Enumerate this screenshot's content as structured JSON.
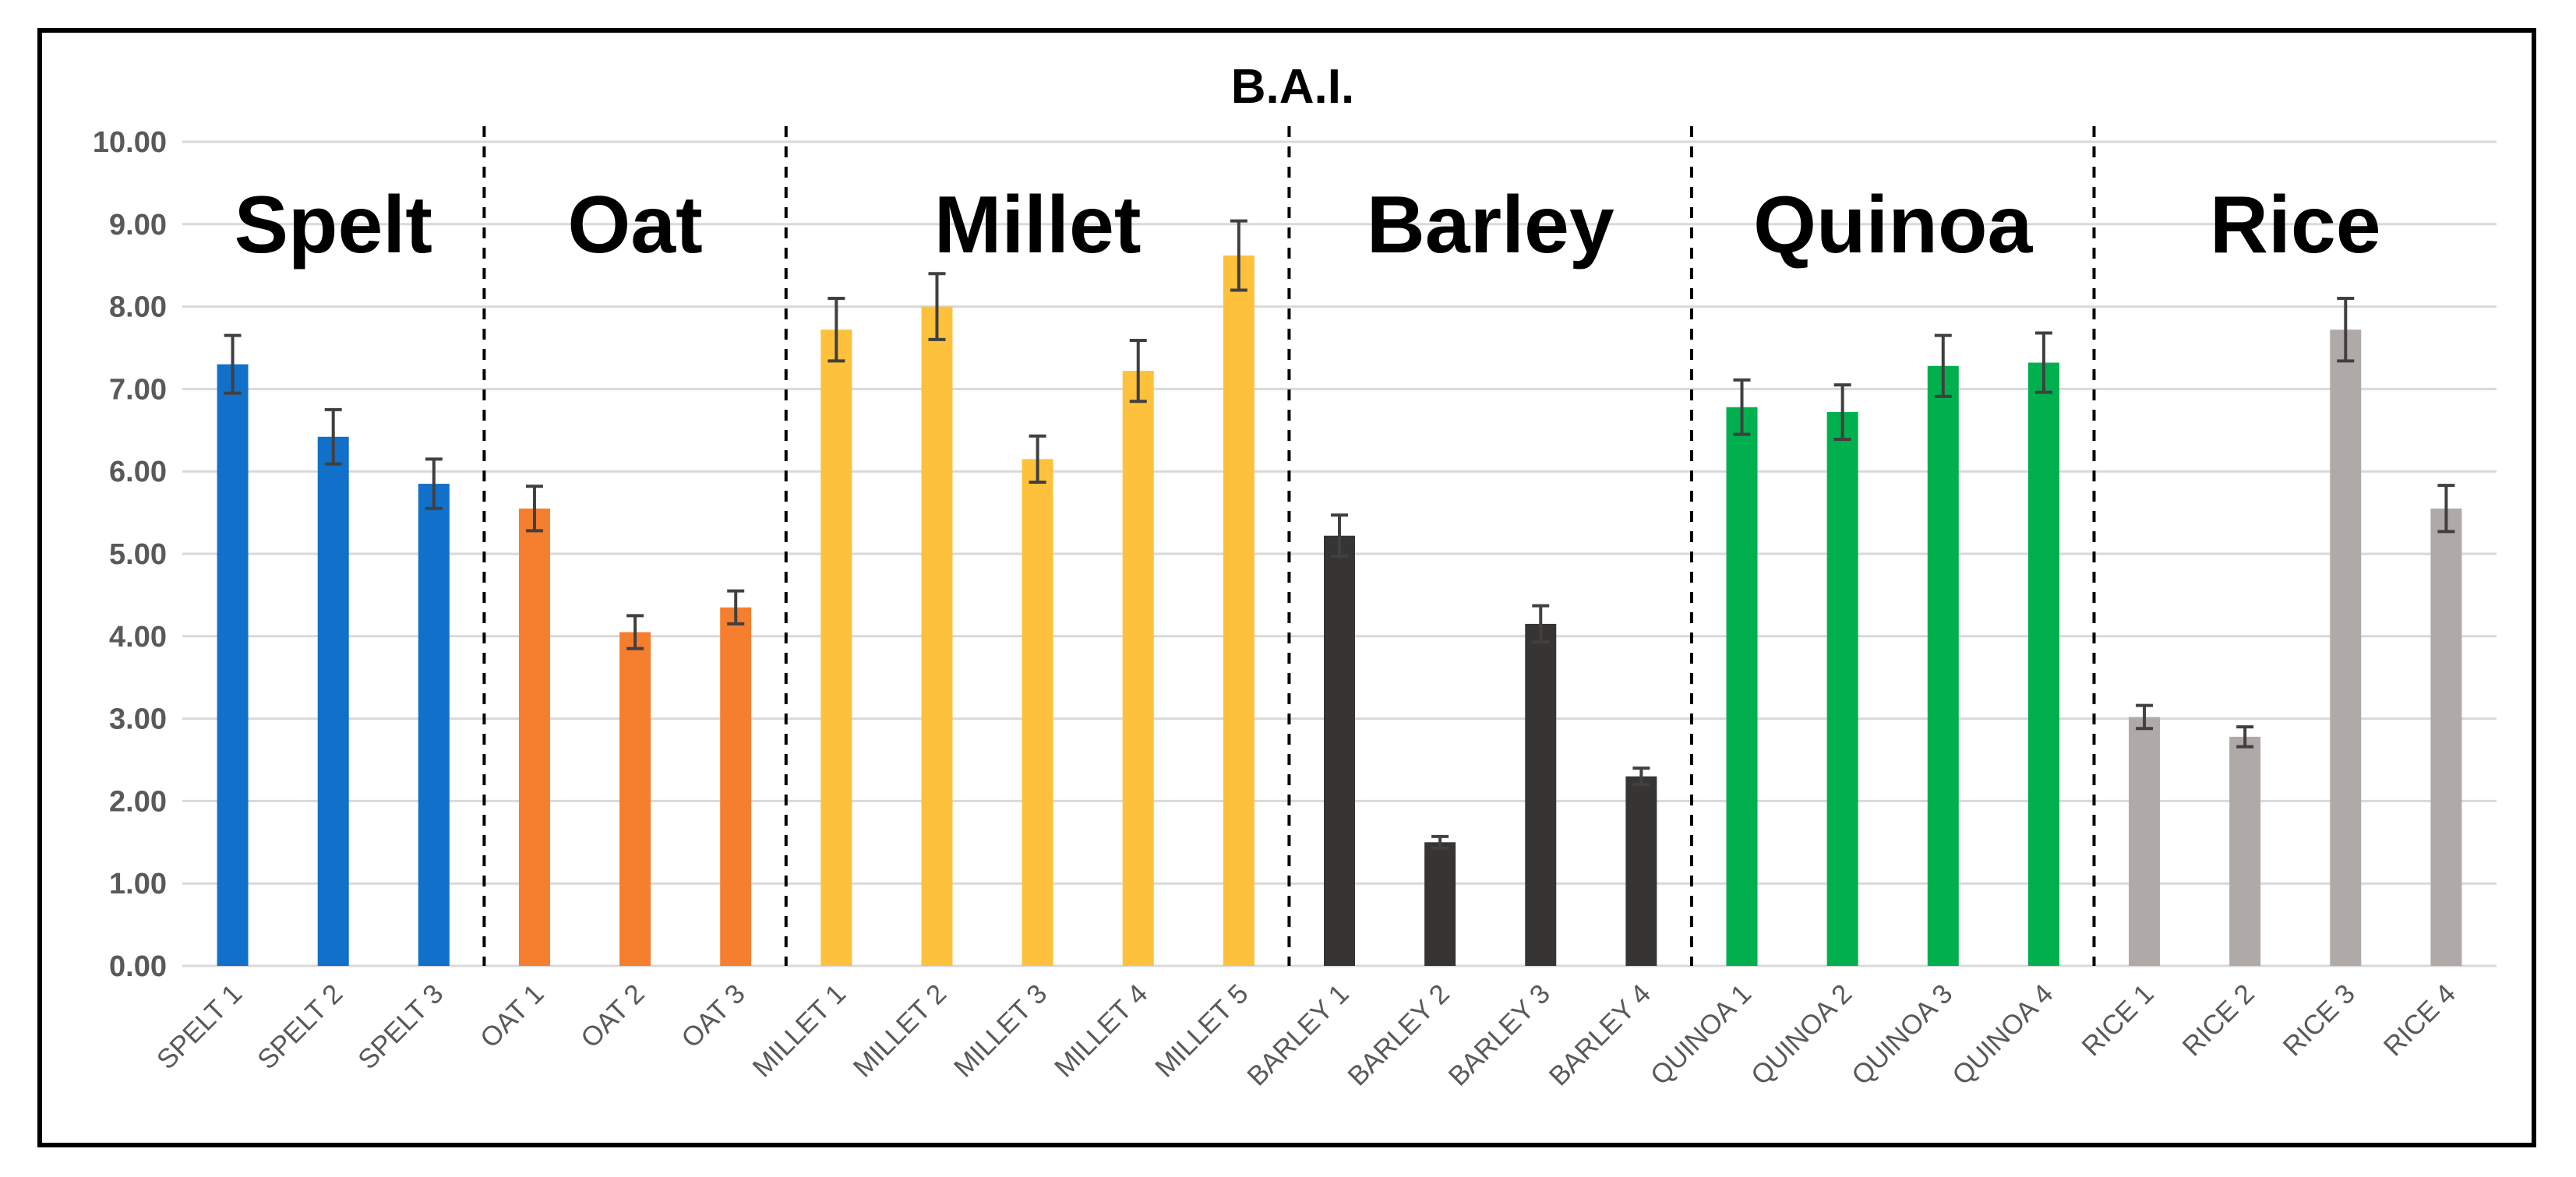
{
  "chart_data": {
    "type": "bar",
    "title": "B.A.I.",
    "xlabel": "",
    "ylabel": "",
    "ylim": [
      0,
      10
    ],
    "yticks": [
      "0.00",
      "1.00",
      "2.00",
      "3.00",
      "4.00",
      "5.00",
      "6.00",
      "7.00",
      "8.00",
      "9.00",
      "10.00"
    ],
    "grid": true,
    "legend": "none",
    "groups": [
      {
        "label": "Spelt",
        "color": "#1170C9",
        "categories": [
          "SPELT 1",
          "SPELT 2",
          "SPELT 3"
        ],
        "values": [
          7.3,
          6.42,
          5.85
        ],
        "errors": [
          0.35,
          0.33,
          0.3
        ]
      },
      {
        "label": "Oat",
        "color": "#F57E2F",
        "categories": [
          "OAT 1",
          "OAT 2",
          "OAT 3"
        ],
        "values": [
          5.55,
          4.05,
          4.35
        ],
        "errors": [
          0.27,
          0.2,
          0.2
        ]
      },
      {
        "label": "Millet",
        "color": "#FDC13B",
        "categories": [
          "MILLET 1",
          "MILLET 2",
          "MILLET 3",
          "MILLET 4",
          "MILLET 5"
        ],
        "values": [
          7.72,
          8.0,
          6.15,
          7.22,
          8.62
        ],
        "errors": [
          0.38,
          0.4,
          0.28,
          0.37,
          0.42
        ]
      },
      {
        "label": "Barley",
        "color": "#363534",
        "categories": [
          "BARLEY 1",
          "BARLEY 2",
          "BARLEY 3",
          "BARLEY 4"
        ],
        "values": [
          5.22,
          1.5,
          4.15,
          2.3
        ],
        "errors": [
          0.25,
          0.07,
          0.22,
          0.1
        ]
      },
      {
        "label": "Quinoa",
        "color": "#00B04E",
        "categories": [
          "QUINOA 1",
          "QUINOA 2",
          "QUINOA 3",
          "QUINOA 4"
        ],
        "values": [
          6.78,
          6.72,
          7.28,
          7.32
        ],
        "errors": [
          0.33,
          0.33,
          0.37,
          0.36
        ]
      },
      {
        "label": "Rice",
        "color": "#AFAAA7",
        "categories": [
          "RICE 1",
          "RICE 2",
          "RICE 3",
          "RICE 4"
        ],
        "values": [
          3.02,
          2.78,
          7.72,
          5.55
        ],
        "errors": [
          0.14,
          0.12,
          0.38,
          0.28
        ]
      }
    ]
  }
}
